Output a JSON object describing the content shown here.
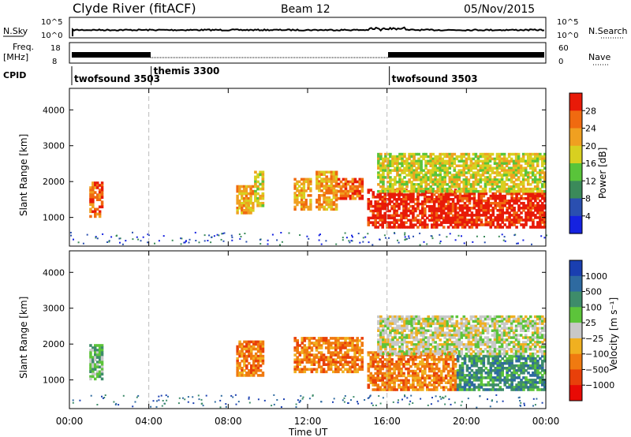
{
  "header": {
    "station": "Clyde River (fitACF)",
    "beam": "Beam 12",
    "date": "05/Nov/2015"
  },
  "top_panels": {
    "nsky_label": "N.Sky",
    "nsky_ticks": [
      "10^5",
      "10^0"
    ],
    "nsearch_label": "N.Search",
    "nsearch_ticks": [
      "10^5",
      "10^0"
    ],
    "freq_label_line1": "Freq.",
    "freq_label_line2": "[MHz]",
    "freq_ticks": [
      "18",
      "8"
    ],
    "nave_label": "Nave",
    "nave_ticks": [
      "60",
      "0"
    ],
    "cpid_label": "CPID",
    "cpid_segments": [
      {
        "name": "twofsound 3503",
        "start_h": 0,
        "end_h": 4
      },
      {
        "name": "themis 3300",
        "start_h": 4,
        "end_h": 16
      },
      {
        "name": "twofsound 3503",
        "start_h": 16,
        "end_h": 24
      }
    ]
  },
  "power_colorbar": {
    "label": "Power [dB]",
    "ticks": [
      "4",
      "8",
      "12",
      "16",
      "20",
      "24",
      "28"
    ],
    "colors": [
      "#1522e0",
      "#2a4fb0",
      "#3b8a5a",
      "#59c43a",
      "#d8d020",
      "#f0a020",
      "#f06a10",
      "#e81a08"
    ]
  },
  "velocity_colorbar": {
    "label": "Velocity [m s⁻¹]",
    "ticks": [
      "1000",
      "500",
      "100",
      "25",
      "−25",
      "−100",
      "−500",
      "−1000"
    ],
    "colors": [
      "#1a3fb0",
      "#2e6aa0",
      "#3e8c6a",
      "#5cc43a",
      "#c8c8c8",
      "#f0b020",
      "#f07a10",
      "#e8400a",
      "#e80a05"
    ]
  },
  "chart_data": {
    "type": "heatmap",
    "xlabel": "Time UT",
    "ylabel": "Slant Range [km]",
    "x_ticks": [
      "00:00",
      "04:00",
      "08:00",
      "12:00",
      "16:00",
      "20:00",
      "00:00"
    ],
    "x_tick_hours": [
      0,
      4,
      8,
      12,
      16,
      20,
      24
    ],
    "xlim": [
      0,
      24
    ],
    "ylim": [
      200,
      4600
    ],
    "y_ticks": [
      1000,
      2000,
      3000,
      4000
    ],
    "dashed_time_markers_h": [
      4,
      16
    ],
    "power_patches": [
      {
        "t0": 1.0,
        "t1": 1.7,
        "r0": 1000,
        "r1": 2000,
        "level": 6
      },
      {
        "t0": 8.4,
        "t1": 9.3,
        "r0": 1100,
        "r1": 1900,
        "level": 5
      },
      {
        "t0": 9.3,
        "t1": 9.8,
        "r0": 1300,
        "r1": 2300,
        "level": 4
      },
      {
        "t0": 11.3,
        "t1": 12.2,
        "r0": 1200,
        "r1": 2100,
        "level": 5
      },
      {
        "t0": 12.4,
        "t1": 13.5,
        "r0": 1200,
        "r1": 2300,
        "level": 5
      },
      {
        "t0": 13.5,
        "t1": 14.8,
        "r0": 1500,
        "r1": 2100,
        "level": 6
      },
      {
        "t0": 15.0,
        "t1": 19.5,
        "r0": 700,
        "r1": 1800,
        "level": 7
      },
      {
        "t0": 19.5,
        "t1": 24.0,
        "r0": 700,
        "r1": 1700,
        "level": 7
      },
      {
        "t0": 15.5,
        "t1": 24.0,
        "r0": 1700,
        "r1": 2800,
        "level": 4
      }
    ],
    "velocity_patches": [
      {
        "t0": 1.0,
        "t1": 1.7,
        "r0": 1000,
        "r1": 2000,
        "level": 3
      },
      {
        "t0": 8.4,
        "t1": 9.8,
        "r0": 1100,
        "r1": 2100,
        "level": 6
      },
      {
        "t0": 11.3,
        "t1": 14.8,
        "r0": 1200,
        "r1": 2200,
        "level": 6
      },
      {
        "t0": 15.0,
        "t1": 19.5,
        "r0": 700,
        "r1": 1800,
        "level": 6
      },
      {
        "t0": 19.5,
        "t1": 24.0,
        "r0": 700,
        "r1": 1700,
        "level": 2
      },
      {
        "t0": 15.5,
        "t1": 24.0,
        "r0": 1700,
        "r1": 2800,
        "level": 4
      }
    ]
  }
}
